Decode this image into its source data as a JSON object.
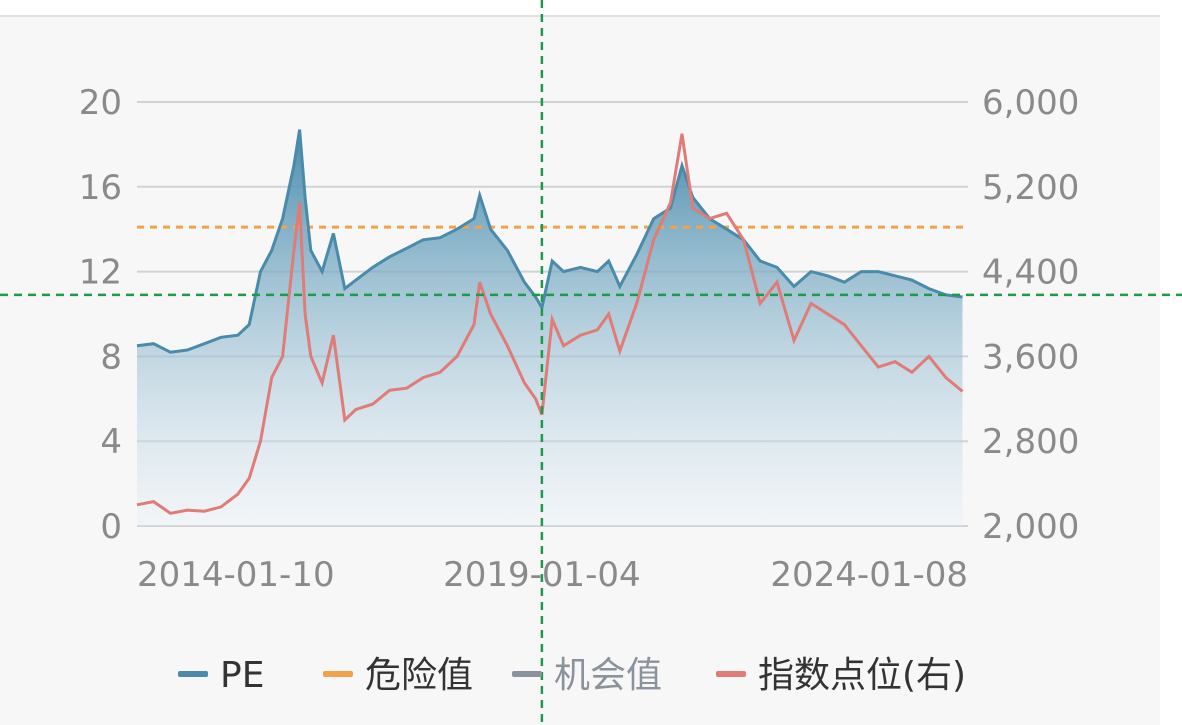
{
  "colors": {
    "pe": "#4a8aab",
    "danger": "#f2a24b",
    "opportunity": "#8a939b",
    "index": "#e07b78",
    "grid": "#d0d3d6",
    "tick": "#8a8a8a",
    "crosshair": "#1e9a4a"
  },
  "chart_data": {
    "type": "line",
    "x_ticks": [
      "2014-01-10",
      "2019-01-04",
      "2024-01-08"
    ],
    "x_range": [
      "2013-01-01",
      "2025-05-01"
    ],
    "y_left": {
      "ticks": [
        "0",
        "4",
        "8",
        "12",
        "16",
        "20"
      ],
      "range": [
        0,
        20
      ]
    },
    "y_right": {
      "ticks": [
        "2,000",
        "2,800",
        "3,600",
        "4,400",
        "5,200",
        "6,000"
      ],
      "range": [
        2000,
        6000
      ]
    },
    "grid": true,
    "legend_position": "bottom",
    "danger_value": 14.1,
    "legend": [
      {
        "key": "pe",
        "label": "PE",
        "text_color": "#333333"
      },
      {
        "key": "danger",
        "label": "危险值",
        "text_color": "#333333"
      },
      {
        "key": "opportunity",
        "label": "机会值",
        "text_color": "#8a939b"
      },
      {
        "key": "index",
        "label": "指数点位(右)",
        "text_color": "#333333"
      }
    ],
    "series": [
      {
        "key": "pe",
        "axis": "left",
        "points": [
          [
            "2013-01-01",
            8.5
          ],
          [
            "2013-04-01",
            8.6
          ],
          [
            "2013-07-01",
            8.2
          ],
          [
            "2013-10-01",
            8.3
          ],
          [
            "2014-01-01",
            8.6
          ],
          [
            "2014-04-01",
            8.9
          ],
          [
            "2014-07-01",
            9.0
          ],
          [
            "2014-09-01",
            9.5
          ],
          [
            "2014-11-01",
            12.0
          ],
          [
            "2015-01-01",
            13.0
          ],
          [
            "2015-03-01",
            14.5
          ],
          [
            "2015-05-01",
            17.0
          ],
          [
            "2015-06-01",
            18.7
          ],
          [
            "2015-07-01",
            15.5
          ],
          [
            "2015-08-01",
            13.0
          ],
          [
            "2015-10-01",
            12.0
          ],
          [
            "2015-12-01",
            13.8
          ],
          [
            "2016-02-01",
            11.2
          ],
          [
            "2016-04-01",
            11.6
          ],
          [
            "2016-07-01",
            12.2
          ],
          [
            "2016-10-01",
            12.7
          ],
          [
            "2017-01-01",
            13.1
          ],
          [
            "2017-04-01",
            13.5
          ],
          [
            "2017-07-01",
            13.6
          ],
          [
            "2017-10-01",
            14.0
          ],
          [
            "2018-01-01",
            14.5
          ],
          [
            "2018-02-01",
            15.6
          ],
          [
            "2018-04-01",
            14.0
          ],
          [
            "2018-07-01",
            13.0
          ],
          [
            "2018-10-01",
            11.5
          ],
          [
            "2018-12-01",
            10.8
          ],
          [
            "2019-01-04",
            10.3
          ],
          [
            "2019-03-01",
            12.5
          ],
          [
            "2019-05-01",
            12.0
          ],
          [
            "2019-08-01",
            12.2
          ],
          [
            "2019-11-01",
            12.0
          ],
          [
            "2020-01-01",
            12.5
          ],
          [
            "2020-03-01",
            11.3
          ],
          [
            "2020-06-01",
            12.8
          ],
          [
            "2020-09-01",
            14.5
          ],
          [
            "2020-12-01",
            15.0
          ],
          [
            "2021-02-01",
            17.0
          ],
          [
            "2021-04-01",
            15.5
          ],
          [
            "2021-07-01",
            14.5
          ],
          [
            "2021-10-01",
            14.0
          ],
          [
            "2022-01-01",
            13.5
          ],
          [
            "2022-04-01",
            12.5
          ],
          [
            "2022-07-01",
            12.2
          ],
          [
            "2022-10-01",
            11.3
          ],
          [
            "2023-01-01",
            12.0
          ],
          [
            "2023-04-01",
            11.8
          ],
          [
            "2023-07-01",
            11.5
          ],
          [
            "2023-10-01",
            12.0
          ],
          [
            "2024-01-01",
            12.0
          ],
          [
            "2024-04-01",
            11.8
          ],
          [
            "2024-07-01",
            11.6
          ],
          [
            "2024-10-01",
            11.2
          ],
          [
            "2025-01-01",
            10.9
          ],
          [
            "2025-04-01",
            10.8
          ]
        ]
      },
      {
        "key": "index",
        "axis": "right",
        "points": [
          [
            "2013-01-01",
            2200
          ],
          [
            "2013-04-01",
            2230
          ],
          [
            "2013-07-01",
            2120
          ],
          [
            "2013-10-01",
            2150
          ],
          [
            "2014-01-01",
            2140
          ],
          [
            "2014-04-01",
            2180
          ],
          [
            "2014-07-01",
            2300
          ],
          [
            "2014-09-01",
            2450
          ],
          [
            "2014-11-01",
            2800
          ],
          [
            "2015-01-01",
            3400
          ],
          [
            "2015-03-01",
            3600
          ],
          [
            "2015-05-01",
            4600
          ],
          [
            "2015-06-01",
            5050
          ],
          [
            "2015-07-01",
            4000
          ],
          [
            "2015-08-01",
            3600
          ],
          [
            "2015-10-01",
            3350
          ],
          [
            "2015-12-01",
            3800
          ],
          [
            "2016-02-01",
            3000
          ],
          [
            "2016-04-01",
            3100
          ],
          [
            "2016-07-01",
            3150
          ],
          [
            "2016-10-01",
            3280
          ],
          [
            "2017-01-01",
            3300
          ],
          [
            "2017-04-01",
            3400
          ],
          [
            "2017-07-01",
            3450
          ],
          [
            "2017-10-01",
            3600
          ],
          [
            "2018-01-01",
            3900
          ],
          [
            "2018-02-01",
            4300
          ],
          [
            "2018-04-01",
            4000
          ],
          [
            "2018-07-01",
            3700
          ],
          [
            "2018-10-01",
            3350
          ],
          [
            "2018-12-01",
            3200
          ],
          [
            "2019-01-04",
            3050
          ],
          [
            "2019-03-01",
            3950
          ],
          [
            "2019-05-01",
            3700
          ],
          [
            "2019-08-01",
            3800
          ],
          [
            "2019-11-01",
            3850
          ],
          [
            "2020-01-01",
            4000
          ],
          [
            "2020-03-01",
            3650
          ],
          [
            "2020-06-01",
            4100
          ],
          [
            "2020-09-01",
            4700
          ],
          [
            "2020-12-01",
            5050
          ],
          [
            "2021-02-01",
            5700
          ],
          [
            "2021-04-01",
            5000
          ],
          [
            "2021-07-01",
            4900
          ],
          [
            "2021-10-01",
            4950
          ],
          [
            "2022-01-01",
            4700
          ],
          [
            "2022-04-01",
            4100
          ],
          [
            "2022-07-01",
            4300
          ],
          [
            "2022-10-01",
            3750
          ],
          [
            "2023-01-01",
            4100
          ],
          [
            "2023-04-01",
            4000
          ],
          [
            "2023-07-01",
            3900
          ],
          [
            "2023-10-01",
            3700
          ],
          [
            "2024-01-01",
            3500
          ],
          [
            "2024-04-01",
            3550
          ],
          [
            "2024-07-01",
            3450
          ],
          [
            "2024-10-01",
            3600
          ],
          [
            "2025-01-01",
            3400
          ],
          [
            "2025-04-01",
            3270
          ]
        ]
      }
    ],
    "crosshair": {
      "x": "2019-01-04",
      "y_left": 10.9
    }
  }
}
